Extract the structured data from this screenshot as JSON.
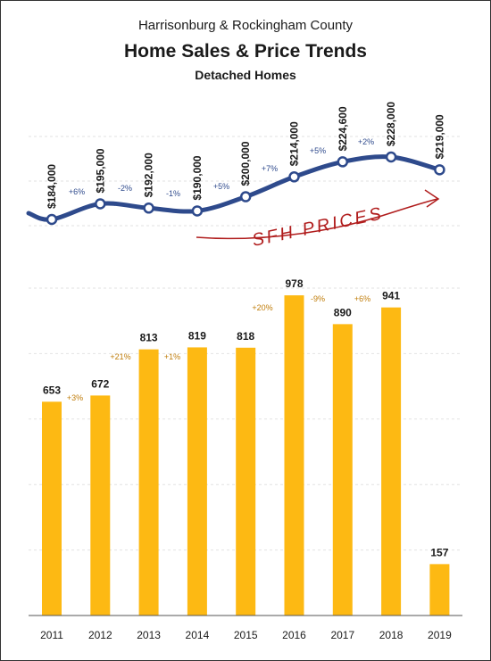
{
  "chart_data": [
    {
      "type": "line",
      "title": "Home Sales & Price Trends",
      "subtitle": "Harrisonburg & Rockingham County",
      "subtitle2": "Detached Homes",
      "series": [
        {
          "name": "",
          "values": [
            184000,
            195000,
            192000,
            190000,
            200000,
            214000,
            224600,
            228000,
            219000
          ]
        }
      ],
      "categories": [
        "2011",
        "2012",
        "2013",
        "2014",
        "2015",
        "2016",
        "2017",
        "2018",
        "2019"
      ],
      "value_labels": [
        "$184,000",
        "$195,000",
        "$192,000",
        "$190,000",
        "$200,000",
        "$214,000",
        "$224,600",
        "$228,000",
        "$219,000"
      ],
      "change_labels": [
        "+6%",
        "-2%",
        "-1%",
        "+5%",
        "+7%",
        "+5%",
        "+2%"
      ],
      "annotation": "SFH PRICES",
      "line_color": "#2e4a8c",
      "annotation_color": "#b01c1c",
      "ylim": [
        170000,
        240000
      ]
    },
    {
      "type": "bar",
      "categories": [
        "2011",
        "2012",
        "2013",
        "2014",
        "2015",
        "2016",
        "2017",
        "2018",
        "2019"
      ],
      "values": [
        653,
        672,
        813,
        819,
        818,
        978,
        890,
        941,
        157
      ],
      "value_labels": [
        "653",
        "672",
        "813",
        "819",
        "818",
        "978",
        "890",
        "941",
        "157"
      ],
      "change_labels": [
        "+3%",
        "+21%",
        "+1%",
        "+20%",
        "-9%",
        "+6%"
      ],
      "bar_color": "#fdb913",
      "change_color": "#c07d0a",
      "ylim": [
        0,
        1000
      ],
      "grid": true
    }
  ]
}
